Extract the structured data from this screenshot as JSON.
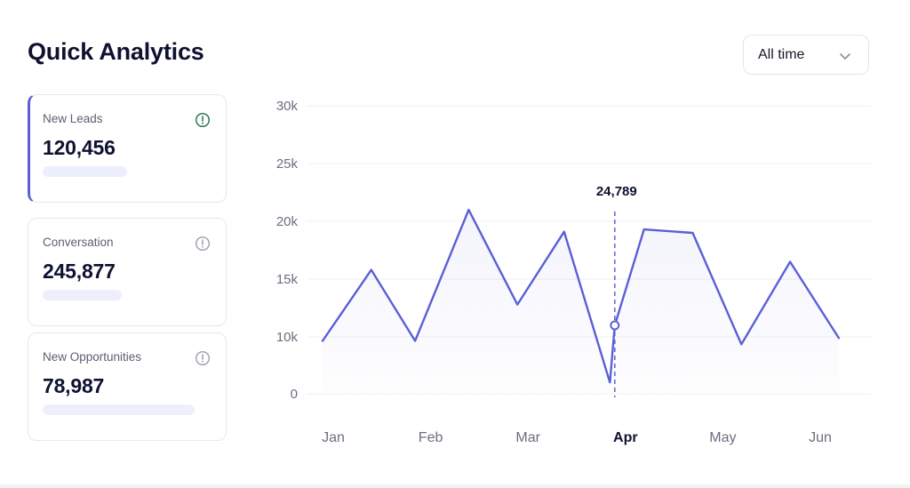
{
  "header": {
    "title": "Quick Analytics"
  },
  "range_select": {
    "value": "All time"
  },
  "cards": [
    {
      "label": "New Leads",
      "value": "120,456",
      "active": true,
      "progress": 0.5
    },
    {
      "label": "Conversation",
      "value": "245,877",
      "active": false,
      "progress": 0.47
    },
    {
      "label": "New Opportunities",
      "value": "78,987",
      "active": false,
      "progress": 0.9
    }
  ],
  "colors": {
    "accent": "#5b5fd6",
    "active_icon": "#2f7a55",
    "muted_icon": "#a3a6b3"
  },
  "chart_data": {
    "type": "area",
    "ylim": [
      0,
      30000
    ],
    "y_ticks": [
      "0",
      "10k",
      "15k",
      "20k",
      "25k",
      "30k"
    ],
    "x_labels": [
      "Jan",
      "Feb",
      "Mar",
      "Apr",
      "May",
      "Jun"
    ],
    "highlight_label": "Apr",
    "tooltip": {
      "value": "24,789"
    },
    "series": [
      {
        "values": [
          [
            0,
            9300
          ],
          [
            0.5,
            15800
          ],
          [
            0.95,
            9300
          ],
          [
            1.5,
            21000
          ],
          [
            2.0,
            12800
          ],
          [
            2.48,
            19100
          ],
          [
            2.95,
            2000
          ],
          [
            3.0,
            11000
          ],
          [
            3.3,
            19300
          ],
          [
            3.8,
            19000
          ],
          [
            4.3,
            8700
          ],
          [
            4.8,
            16500
          ],
          [
            5.3,
            9800
          ]
        ]
      }
    ],
    "grid": true
  }
}
